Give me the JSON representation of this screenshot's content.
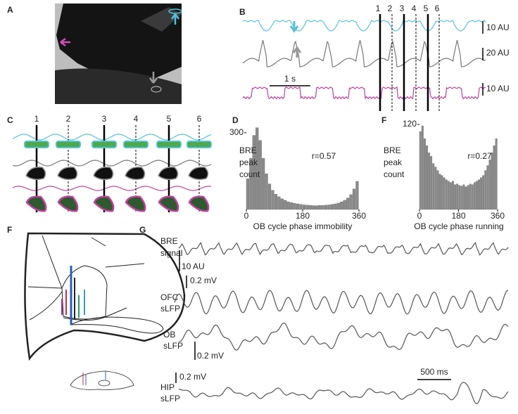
{
  "panels": {
    "A": {
      "label": "A"
    },
    "B": {
      "label": "B",
      "scale_bars": [
        "10 AU",
        "20 AU",
        "10 AU"
      ],
      "time_bar": "1 s",
      "markers": [
        "1",
        "2",
        "3",
        "4",
        "5",
        "6"
      ]
    },
    "C": {
      "label": "C",
      "markers": [
        "1",
        "2",
        "3",
        "4",
        "5",
        "6"
      ]
    },
    "D": {
      "label": "D",
      "type": "histogram",
      "y_label": [
        "BRE",
        "peak",
        "count"
      ],
      "annotation": "r=0.57",
      "x_label": "OB cycle phase immobility",
      "xlim": [
        0,
        360
      ],
      "xticks": [
        0,
        180,
        360
      ],
      "ylim": [
        0,
        330
      ],
      "yticks": [
        300
      ],
      "color": "#8a8a8a",
      "bins": [
        0,
        10,
        20,
        30,
        40,
        50,
        60,
        70,
        80,
        90,
        100,
        110,
        120,
        130,
        140,
        150,
        160,
        170,
        180,
        190,
        200,
        210,
        220,
        230,
        240,
        250,
        260,
        270,
        280,
        290,
        300,
        310,
        320,
        330,
        340,
        350,
        360
      ],
      "counts": [
        120,
        200,
        290,
        320,
        270,
        200,
        140,
        100,
        75,
        60,
        50,
        42,
        36,
        30,
        27,
        24,
        22,
        20,
        18,
        17,
        16,
        15,
        15,
        16,
        16,
        17,
        18,
        20,
        22,
        25,
        30,
        36,
        45,
        58,
        80,
        110
      ]
    },
    "E": {
      "label": "F",
      "type": "histogram",
      "y_label": [
        "BRE",
        "peak",
        "count"
      ],
      "annotation": "r=0.27",
      "x_label": "OB cycle phase running",
      "xlim": [
        0,
        360
      ],
      "xticks": [
        0,
        180,
        360
      ],
      "ylim": [
        0,
        125
      ],
      "yticks": [
        120
      ],
      "color": "#8a8a8a",
      "bins": [
        0,
        10,
        20,
        30,
        40,
        50,
        60,
        70,
        80,
        90,
        100,
        110,
        120,
        130,
        140,
        150,
        160,
        170,
        180,
        190,
        200,
        210,
        220,
        230,
        240,
        250,
        260,
        270,
        280,
        290,
        300,
        310,
        320,
        330,
        340,
        350,
        360
      ],
      "counts": [
        110,
        118,
        100,
        90,
        80,
        75,
        65,
        60,
        55,
        50,
        48,
        45,
        42,
        40,
        38,
        40,
        35,
        36,
        34,
        33,
        35,
        32,
        34,
        36,
        35,
        38,
        40,
        42,
        45,
        48,
        55,
        62,
        70,
        80,
        90,
        100
      ]
    },
    "F": {
      "label": "F"
    },
    "G": {
      "label": "G",
      "time_bar": "500 ms",
      "traces": [
        {
          "name": [
            "BRE",
            "signal"
          ],
          "scale": "10 AU"
        },
        {
          "name": [
            "OFC",
            "sLFP"
          ],
          "scale": "0.2 mV"
        },
        {
          "name": [
            "OB",
            "sLFP"
          ],
          "scale": "0.2 mV"
        },
        {
          "name": [
            "HIP",
            "sLFP"
          ],
          "scale": "0.2 mV"
        }
      ]
    }
  }
}
